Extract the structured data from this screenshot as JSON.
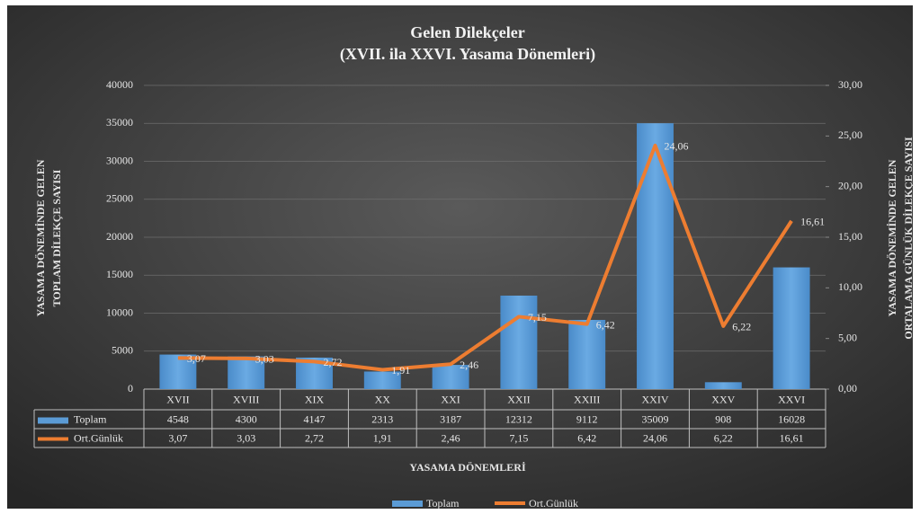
{
  "chart_data": {
    "type": "bar",
    "title": "Gelen Dilekçeler",
    "subtitle": "(XVII. ila XXVI. Yasama Dönemleri)",
    "ylabel": [
      "YASAMA DÖNEMİNDE GELEN",
      "TOPLAM DİLEKÇE SAYISI"
    ],
    "y2label": [
      "YASAMA DÖNEMİNDE GELEN",
      "ORTALAMA GÜNLÜK DİLEKÇE SAYISI"
    ],
    "xlabel": "YASAMA DÖNEMLERİ",
    "categories": [
      "XVII",
      "XVIII",
      "XIX",
      "XX",
      "XXI",
      "XXII",
      "XXIII",
      "XXIV",
      "XXV",
      "XXVI"
    ],
    "series": [
      {
        "name": "Toplam",
        "type": "bar",
        "color": "#5b9bd5",
        "values": [
          4548,
          4300,
          4147,
          2313,
          3187,
          12312,
          9112,
          35009,
          908,
          16028
        ]
      },
      {
        "name": "Ort.Günlük",
        "type": "line",
        "color": "#ed7d31",
        "axis": "y2",
        "values": [
          3.07,
          3.03,
          2.72,
          1.91,
          2.46,
          7.15,
          6.42,
          24.06,
          6.22,
          16.61
        ],
        "value_labels": [
          "3,07",
          "3,03",
          "2,72",
          "1,91",
          "2,46",
          "7,15",
          "6,42",
          "24,06",
          "6,22",
          "16,61"
        ]
      }
    ],
    "ylim": [
      0,
      40000
    ],
    "yticks": [
      0,
      5000,
      10000,
      15000,
      20000,
      25000,
      30000,
      35000,
      40000
    ],
    "y2lim": [
      0,
      30
    ],
    "y2ticks": [
      {
        "value": 0,
        "label": "0,00"
      },
      {
        "value": 5,
        "label": "5,00"
      },
      {
        "value": 10,
        "label": "10,00"
      },
      {
        "value": 15,
        "label": "15,00"
      },
      {
        "value": 20,
        "label": "20,00"
      },
      {
        "value": 25,
        "label": "25,00"
      },
      {
        "value": 30,
        "label": "30,00"
      }
    ],
    "grid": true,
    "legend": "bottom"
  }
}
